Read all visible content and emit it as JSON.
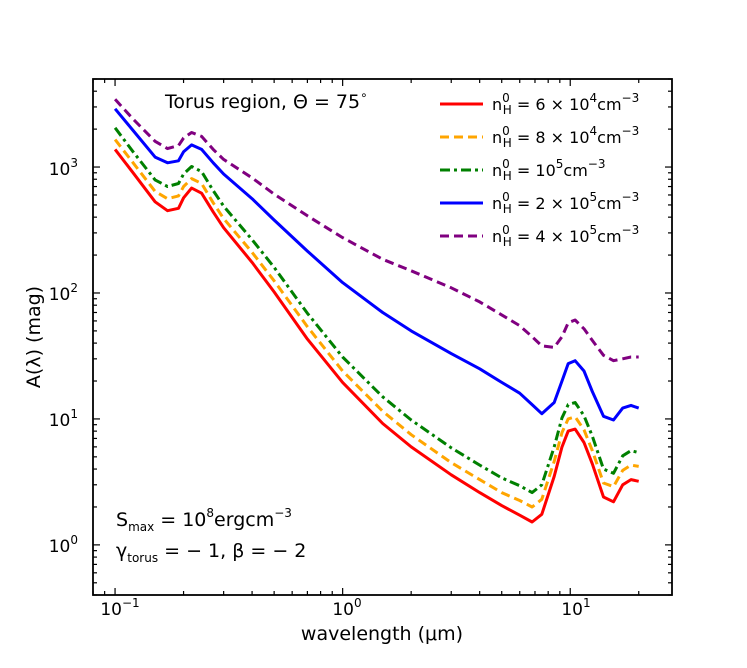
{
  "chart_data": {
    "type": "line",
    "title": "",
    "xlabel": "wavelength (μm)",
    "ylabel": "A(λ) (mag)",
    "xscale": "log",
    "yscale": "log",
    "xlim": [
      0.08,
      28
    ],
    "ylim": [
      0.4,
      5000
    ],
    "x_ticks": [
      {
        "value": 0.1,
        "label_base": "10",
        "label_exp": "−1"
      },
      {
        "value": 1,
        "label_base": "10",
        "label_exp": "0"
      },
      {
        "value": 10,
        "label_base": "10",
        "label_exp": "1"
      }
    ],
    "y_ticks": [
      {
        "value": 1,
        "label_base": "10",
        "label_exp": "0"
      },
      {
        "value": 10,
        "label_base": "10",
        "label_exp": "1"
      },
      {
        "value": 100,
        "label_base": "10",
        "label_exp": "2"
      },
      {
        "value": 1000,
        "label_base": "10",
        "label_exp": "3"
      }
    ],
    "annotations": {
      "top": {
        "text": "Torus region, Θ = 75",
        "sup": "∘"
      },
      "smax": {
        "prefix": "S",
        "sub": "max",
        "mid": " = 10",
        "sup": "8",
        "suffix": "ergcm",
        "sup2": "−3"
      },
      "gamma": {
        "prefix": "γ",
        "sub": "torus",
        "suffix": " = − 1, β = − 2"
      }
    },
    "x": [
      0.1,
      0.12,
      0.15,
      0.17,
      0.19,
      0.2,
      0.217,
      0.24,
      0.27,
      0.3,
      0.4,
      0.5,
      0.7,
      1.0,
      1.5,
      2,
      3,
      4,
      5,
      6,
      6.8,
      7.5,
      8.5,
      9.2,
      9.8,
      10.5,
      11.5,
      12.5,
      14,
      15.5,
      17,
      18.5,
      20
    ],
    "series": [
      {
        "name": "n_H^0 = 6 × 10^4 cm^-3",
        "legend": {
          "base": "n",
          "sup": "0",
          "sub": "H",
          "text": " = 6 × 10",
          "exp": "4",
          "unit": "cm",
          "unit_exp": "−3"
        },
        "color": "#ff0000",
        "dash": "solid",
        "values": [
          1380,
          900,
          530,
          450,
          470,
          570,
          680,
          620,
          440,
          330,
          175,
          102,
          43,
          19.5,
          9.2,
          6.0,
          3.6,
          2.6,
          2.05,
          1.72,
          1.52,
          1.75,
          3.5,
          6.0,
          8.0,
          8.3,
          6.5,
          4.4,
          2.4,
          2.2,
          3.0,
          3.3,
          3.2
        ]
      },
      {
        "name": "n_H^0 = 8 × 10^4 cm^-3",
        "legend": {
          "base": "n",
          "sup": "0",
          "sub": "H",
          "text": " = 8 × 10",
          "exp": "4",
          "unit": "cm",
          "unit_exp": "−3"
        },
        "color": "#ffa500",
        "dash": "dashed",
        "values": [
          1650,
          1080,
          640,
          560,
          590,
          700,
          810,
          740,
          520,
          390,
          210,
          125,
          54,
          24,
          11.5,
          7.5,
          4.5,
          3.3,
          2.6,
          2.25,
          2.0,
          2.3,
          4.6,
          7.8,
          10.0,
          10.4,
          8.2,
          5.6,
          3.1,
          2.9,
          3.9,
          4.3,
          4.2
        ]
      },
      {
        "name": "n_H^0 = 10^5 cm^-3",
        "legend": {
          "base": "n",
          "sup": "0",
          "sub": "H",
          "text": " = 10",
          "exp": "5",
          "unit": "cm",
          "unit_exp": "−3"
        },
        "color": "#008000",
        "dash": "dashdot",
        "values": [
          2050,
          1320,
          790,
          700,
          740,
          880,
          1010,
          920,
          650,
          490,
          265,
          160,
          69,
          31,
          15,
          9.8,
          5.9,
          4.3,
          3.4,
          2.95,
          2.6,
          3.0,
          6.0,
          10.2,
          13.0,
          13.5,
          10.6,
          7.3,
          4.0,
          3.7,
          5.1,
          5.6,
          5.4
        ]
      },
      {
        "name": "n_H^0 = 2 × 10^5 cm^-3",
        "legend": {
          "base": "n",
          "sup": "0",
          "sub": "H",
          "text": " = 2 × 10",
          "exp": "5",
          "unit": "cm",
          "unit_exp": "−3"
        },
        "color": "#0000ff",
        "dash": "solid",
        "values": [
          2900,
          1950,
          1200,
          1080,
          1120,
          1320,
          1500,
          1380,
          1080,
          880,
          560,
          380,
          215,
          121,
          70,
          50,
          33,
          25,
          19.5,
          16,
          13,
          11,
          13.5,
          20,
          27.5,
          29,
          24,
          16.5,
          10.5,
          9.8,
          12.2,
          12.8,
          12.2
        ]
      },
      {
        "name": "n_H^0 = 4 × 10^5 cm^-3",
        "legend": {
          "base": "n",
          "sup": "0",
          "sub": "H",
          "text": " = 4 × 10",
          "exp": "5",
          "unit": "cm",
          "unit_exp": "−3"
        },
        "color": "#800080",
        "dash": "dashed",
        "values": [
          3450,
          2400,
          1600,
          1400,
          1480,
          1700,
          1880,
          1750,
          1380,
          1150,
          820,
          610,
          410,
          275,
          185,
          150,
          110,
          85,
          67,
          55,
          45,
          38,
          37,
          45,
          58,
          61,
          52,
          42,
          32,
          29,
          30,
          31,
          31
        ]
      }
    ],
    "legend_position": "top-right",
    "grid": false
  }
}
